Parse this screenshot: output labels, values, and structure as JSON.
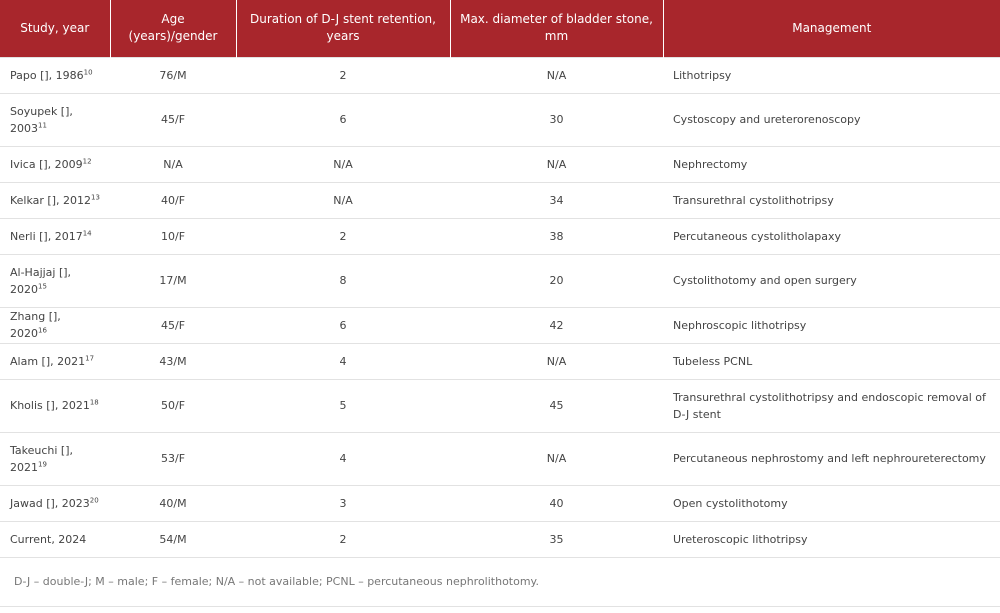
{
  "table": {
    "headers": [
      "Study, year",
      "Age (years)/gender",
      "Duration of D-J stent retention, years",
      "Max. diameter of bladder stone, mm",
      "Management"
    ],
    "rows": [
      {
        "study": "Papo [], 1986",
        "ref": "10",
        "age": "76/M",
        "duration": "2",
        "diameter": "N/A",
        "management": "Lithotripsy"
      },
      {
        "study": "Soyupek [], 2003",
        "ref": "11",
        "age": "45/F",
        "duration": "6",
        "diameter": "30",
        "management": "Cystoscopy and ureterorenoscopy"
      },
      {
        "study": "Ivica [], 2009",
        "ref": "12",
        "age": "N/A",
        "duration": "N/A",
        "diameter": "N/A",
        "management": "Nephrectomy"
      },
      {
        "study": "Kelkar [], 2012",
        "ref": "13",
        "age": "40/F",
        "duration": "N/A",
        "diameter": "34",
        "management": "Transurethral cystolithotripsy"
      },
      {
        "study": "Nerli [], 2017",
        "ref": "14",
        "age": "10/F",
        "duration": "2",
        "diameter": "38",
        "management": "Percutaneous cystolitholapaxy"
      },
      {
        "study": "Al-Hajjaj [], 2020",
        "ref": "15",
        "age": "17/M",
        "duration": "8",
        "diameter": "20",
        "management": "Cystolithotomy and open surgery"
      },
      {
        "study": "Zhang [], 2020",
        "ref": "16",
        "age": "45/F",
        "duration": "6",
        "diameter": "42",
        "management": "Nephroscopic lithotripsy"
      },
      {
        "study": "Alam [], 2021",
        "ref": "17",
        "age": "43/M",
        "duration": "4",
        "diameter": "N/A",
        "management": "Tubeless PCNL"
      },
      {
        "study": "Kholis [], 2021",
        "ref": "18",
        "age": "50/F",
        "duration": "5",
        "diameter": "45",
        "management": "Transurethral cystolithotripsy and endoscopic removal of D-J stent"
      },
      {
        "study": "Takeuchi [], 2021",
        "ref": "19",
        "age": "53/F",
        "duration": "4",
        "diameter": "N/A",
        "management": "Percutaneous nephrostomy and left nephroureterectomy"
      },
      {
        "study": "Jawad [], 2023",
        "ref": "20",
        "age": "40/M",
        "duration": "3",
        "diameter": "40",
        "management": "Open cystolithotomy"
      },
      {
        "study": "Current, 2024",
        "ref": "",
        "age": "54/M",
        "duration": "2",
        "diameter": "35",
        "management": "Ureteroscopic lithotripsy"
      }
    ],
    "footnote": "D-J – double-J; M – male; F – female; N/A – not available; PCNL – percutaneous nephrolithotomy."
  }
}
